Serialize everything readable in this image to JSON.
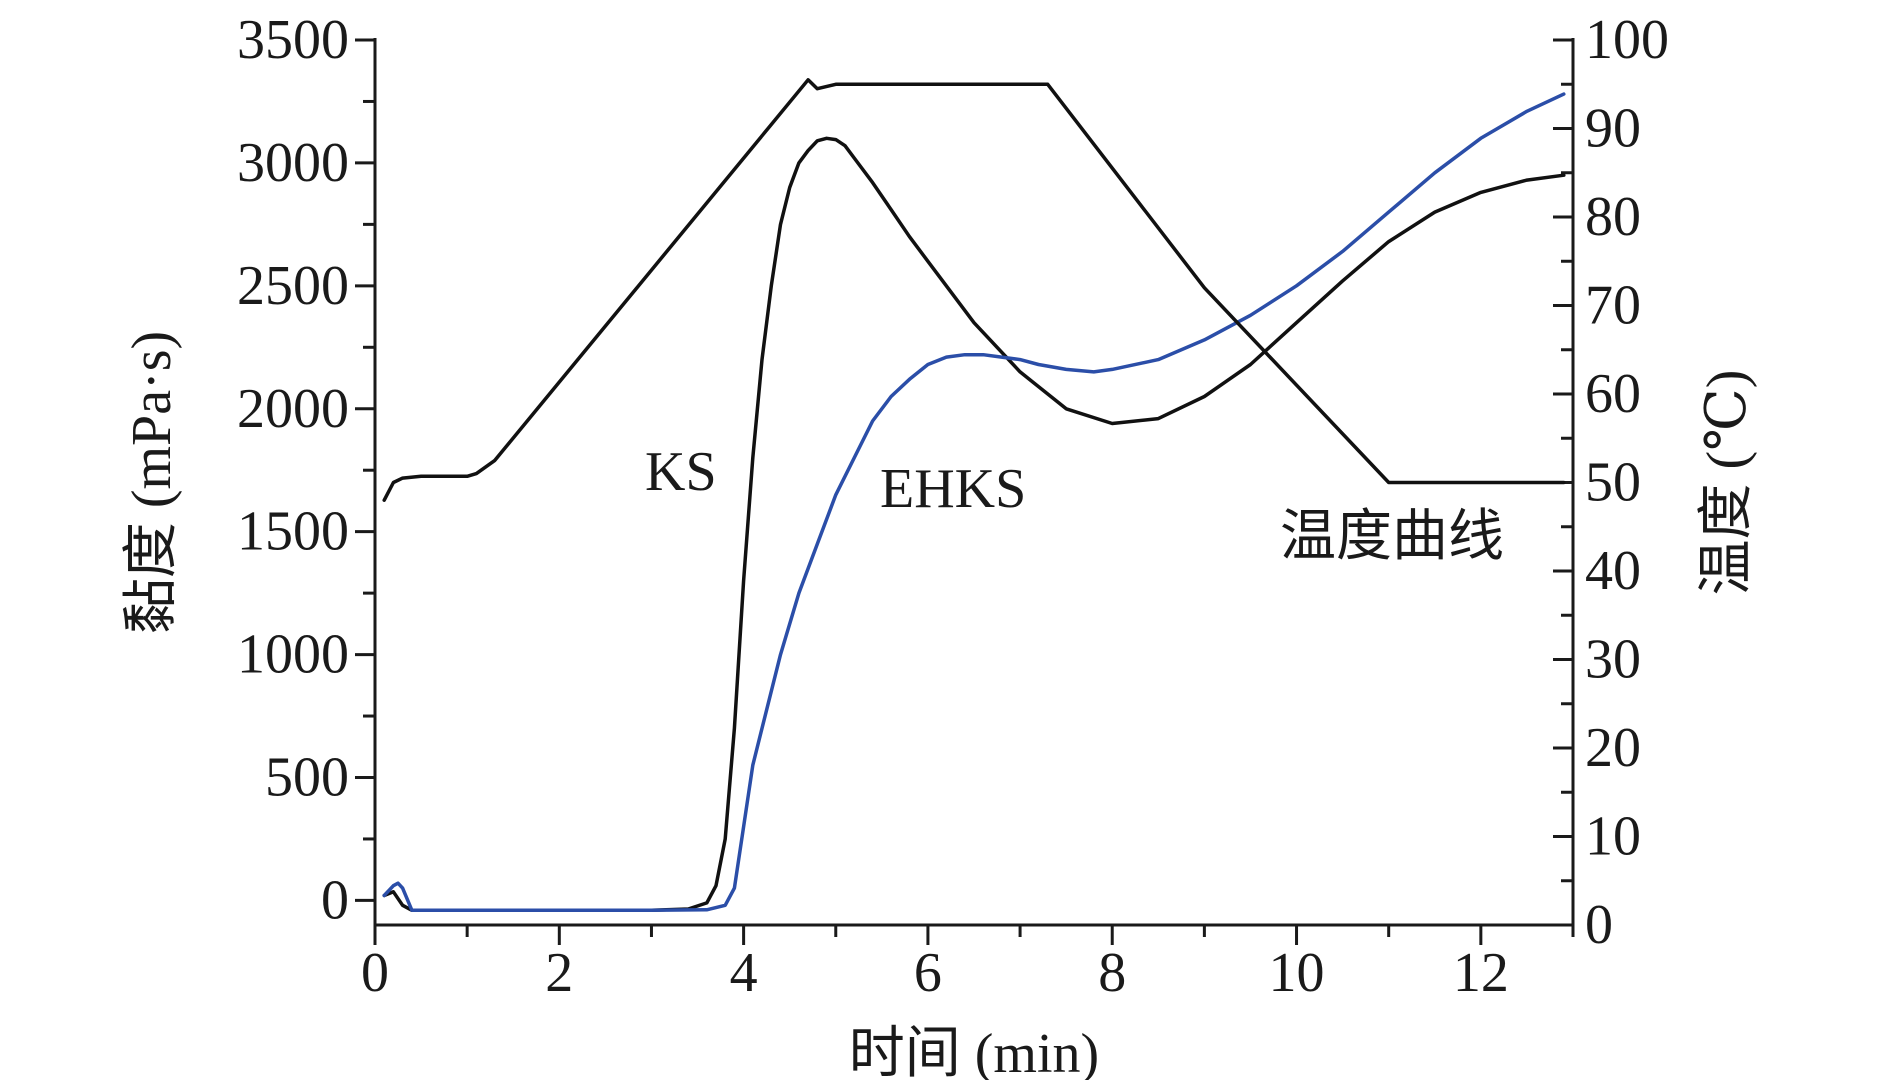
{
  "chart_data": {
    "type": "line",
    "xlabel": "时间 (min)",
    "ylabel_left": "黏度 (mPa·s)",
    "ylabel_right": "温度 (℃)",
    "xlim": [
      0,
      13
    ],
    "ylim_left": [
      -100,
      3500
    ],
    "ylim_right": [
      0,
      100
    ],
    "x_ticks": [
      "0",
      "2",
      "4",
      "6",
      "8",
      "10",
      "12"
    ],
    "y_left_ticks": [
      "0",
      "500",
      "1000",
      "1500",
      "2000",
      "2500",
      "3000",
      "3500"
    ],
    "y_right_ticks": [
      "0",
      "10",
      "20",
      "30",
      "40",
      "50",
      "60",
      "70",
      "80",
      "90",
      "100"
    ],
    "grid": false,
    "legend": "none",
    "series": [
      {
        "name": "KS",
        "axis": "left",
        "color": "#111111",
        "x": [
          0.1,
          0.2,
          0.3,
          0.4,
          1.0,
          2.0,
          3.0,
          3.4,
          3.6,
          3.7,
          3.8,
          3.9,
          4.0,
          4.1,
          4.2,
          4.3,
          4.4,
          4.5,
          4.6,
          4.7,
          4.8,
          4.9,
          5.0,
          5.1,
          5.2,
          5.4,
          5.6,
          5.8,
          6.0,
          6.5,
          7.0,
          7.5,
          8.0,
          8.5,
          9.0,
          9.5,
          10.0,
          10.5,
          11.0,
          11.5,
          12.0,
          12.5,
          12.9
        ],
        "y": [
          20,
          35,
          -20,
          -40,
          -40,
          -40,
          -40,
          -35,
          -10,
          60,
          250,
          700,
          1300,
          1800,
          2200,
          2500,
          2750,
          2900,
          3000,
          3050,
          3090,
          3100,
          3095,
          3070,
          3020,
          2920,
          2810,
          2700,
          2600,
          2350,
          2150,
          2000,
          1940,
          1960,
          2050,
          2180,
          2350,
          2520,
          2680,
          2800,
          2880,
          2930,
          2950
        ]
      },
      {
        "name": "EHKS",
        "axis": "left",
        "color": "#2b4ea8",
        "x": [
          0.1,
          0.2,
          0.25,
          0.3,
          0.4,
          1.0,
          2.0,
          3.0,
          3.6,
          3.8,
          3.9,
          4.0,
          4.1,
          4.2,
          4.4,
          4.6,
          4.8,
          5.0,
          5.2,
          5.4,
          5.6,
          5.8,
          6.0,
          6.2,
          6.4,
          6.6,
          6.8,
          7.0,
          7.2,
          7.5,
          7.8,
          8.0,
          8.5,
          9.0,
          9.5,
          10.0,
          10.5,
          11.0,
          11.5,
          12.0,
          12.5,
          12.9
        ],
        "y": [
          20,
          60,
          70,
          50,
          -40,
          -40,
          -40,
          -40,
          -38,
          -20,
          50,
          300,
          550,
          700,
          1000,
          1250,
          1450,
          1650,
          1800,
          1950,
          2050,
          2120,
          2180,
          2210,
          2220,
          2220,
          2210,
          2200,
          2180,
          2160,
          2150,
          2160,
          2200,
          2280,
          2380,
          2500,
          2640,
          2800,
          2960,
          3100,
          3210,
          3280
        ]
      },
      {
        "name": "温度曲线",
        "axis": "right",
        "color": "#111111",
        "x": [
          0.1,
          0.2,
          0.3,
          0.5,
          1.0,
          1.1,
          1.3,
          4.7,
          4.8,
          5.0,
          6.0,
          7.0,
          7.3,
          9.0,
          11.0,
          12.0,
          12.9
        ],
        "y": [
          48,
          50,
          50.5,
          50.7,
          50.7,
          51,
          52.5,
          95.5,
          94.5,
          95,
          95,
          95,
          95,
          72,
          50,
          50,
          50
        ]
      }
    ],
    "annotations": [
      "KS",
      "EHKS",
      "温度曲线"
    ]
  }
}
